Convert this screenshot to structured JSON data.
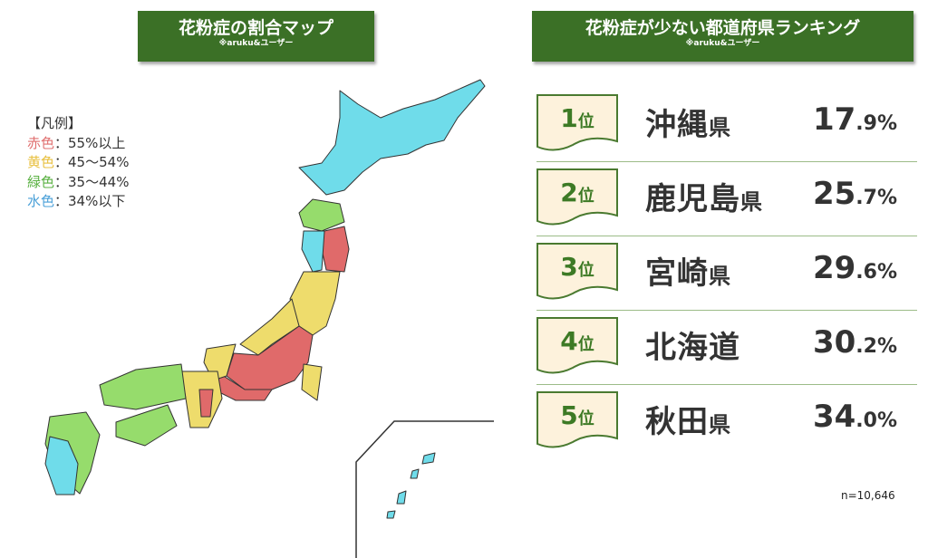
{
  "map_panel": {
    "title": "花粉症の割合マップ",
    "source": "※aruku&ユーザー",
    "legend_heading": "【凡例】",
    "legend": [
      {
        "color_name": "赤色",
        "range": "：55%以上",
        "label_color": "#e07070",
        "fill": "#e06a6a"
      },
      {
        "color_name": "黄色",
        "range": "：45～54%",
        "label_color": "#e8c040",
        "fill": "#eedc6c"
      },
      {
        "color_name": "緑色",
        "range": "：35～44%",
        "label_color": "#58b040",
        "fill": "#96dc6c"
      },
      {
        "color_name": "水色",
        "range": "：34%以下",
        "label_color": "#4aa0d8",
        "fill": "#6fdcea"
      }
    ]
  },
  "ranking_panel": {
    "title": "花粉症が少ない都道府県ランキング",
    "source": "※aruku&ユーザー",
    "rank_suffix": "位",
    "items": [
      {
        "rank": "1",
        "name": "沖縄",
        "suffix": "県",
        "int": "17",
        "dec": ".9%"
      },
      {
        "rank": "2",
        "name": "鹿児島",
        "suffix": "県",
        "int": "25",
        "dec": ".7%"
      },
      {
        "rank": "3",
        "name": "宮崎",
        "suffix": "県",
        "int": "29",
        "dec": ".6%"
      },
      {
        "rank": "4",
        "name": "北海道",
        "suffix": "",
        "int": "30",
        "dec": ".2%"
      },
      {
        "rank": "5",
        "name": "秋田",
        "suffix": "県",
        "int": "34",
        "dec": ".0%"
      }
    ],
    "sample_size": "n=10,646"
  },
  "colors": {
    "header": "#3b7026",
    "badge_bg": "#fdf2dc",
    "badge_border": "#4a7a30"
  }
}
